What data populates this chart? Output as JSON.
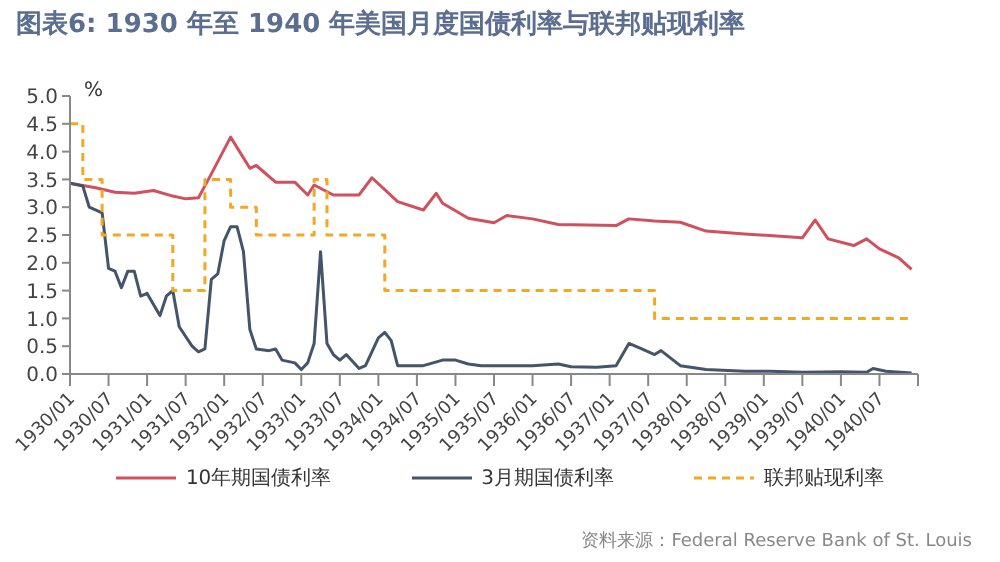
{
  "chart_data": {
    "type": "line",
    "title": "图表6:  1930 年至 1940 年美国月度国债利率与联邦贴现利率",
    "ylabel": "%",
    "annotations": [
      "资料来源：Federal Reserve Bank of St. Louis"
    ],
    "xlim": [
      "1930-01",
      "1941-01"
    ],
    "xticks": [
      {
        "value": "1930-01",
        "label": "1930/01"
      },
      {
        "value": "1930-07",
        "label": "1930/07"
      },
      {
        "value": "1931-01",
        "label": "1931/01"
      },
      {
        "value": "1931-07",
        "label": "1931/07"
      },
      {
        "value": "1932-01",
        "label": "1932/01"
      },
      {
        "value": "1932-07",
        "label": "1932/07"
      },
      {
        "value": "1933-01",
        "label": "1933/01"
      },
      {
        "value": "1933-07",
        "label": "1933/07"
      },
      {
        "value": "1934-01",
        "label": "1934/01"
      },
      {
        "value": "1934-07",
        "label": "1934/07"
      },
      {
        "value": "1935-01",
        "label": "1935/01"
      },
      {
        "value": "1935-07",
        "label": "1935/07"
      },
      {
        "value": "1936-01",
        "label": "1936/01"
      },
      {
        "value": "1936-07",
        "label": "1936/07"
      },
      {
        "value": "1937-01",
        "label": "1937/01"
      },
      {
        "value": "1937-07",
        "label": "1937/07"
      },
      {
        "value": "1938-01",
        "label": "1938/01"
      },
      {
        "value": "1938-07",
        "label": "1938/07"
      },
      {
        "value": "1939-01",
        "label": "1939/01"
      },
      {
        "value": "1939-07",
        "label": "1939/07"
      },
      {
        "value": "1940-01",
        "label": "1940/01"
      },
      {
        "value": "1940-07",
        "label": "1940/07"
      },
      {
        "value": "1941-01",
        "label": null
      }
    ],
    "ylim": [
      0,
      5
    ],
    "yticks": [
      {
        "value": 0,
        "label": "0.0"
      },
      {
        "value": 0.5,
        "label": "0.5"
      },
      {
        "value": 1,
        "label": "1.0"
      },
      {
        "value": 1.5,
        "label": "1.5"
      },
      {
        "value": 2,
        "label": "2.0"
      },
      {
        "value": 2.5,
        "label": "2.5"
      },
      {
        "value": 3,
        "label": "3.0"
      },
      {
        "value": 3.5,
        "label": "3.5"
      },
      {
        "value": 4,
        "label": "4.0"
      },
      {
        "value": 4.5,
        "label": "4.5"
      },
      {
        "value": 5,
        "label": "5.0"
      }
    ],
    "grid": false,
    "legend": "bottom",
    "marker": "none",
    "series": [
      {
        "name": "10年期国债利率",
        "color": "#d0505e",
        "type": "line",
        "line_style": "solid",
        "x": [
          "1930-01",
          "1930-05",
          "1930-08",
          "1930-11",
          "1931-02",
          "1931-05",
          "1931-07",
          "1931-09",
          "1931-11",
          "1932-02",
          "1932-05",
          "1932-06",
          "1932-09",
          "1932-12",
          "1933-02",
          "1933-03",
          "1933-06",
          "1933-10",
          "1933-12",
          "1934-04",
          "1934-08",
          "1934-10",
          "1934-11",
          "1935-03",
          "1935-07",
          "1935-09",
          "1936-01",
          "1936-05",
          "1937-02",
          "1937-04",
          "1937-08",
          "1937-12",
          "1938-04",
          "1938-10",
          "1939-07",
          "1939-09",
          "1939-11",
          "1940-03",
          "1940-05",
          "1940-07",
          "1940-10",
          "1940-12"
        ],
        "values": [
          3.43,
          3.35,
          3.27,
          3.25,
          3.3,
          3.2,
          3.15,
          3.17,
          3.6,
          4.26,
          3.7,
          3.75,
          3.45,
          3.45,
          3.22,
          3.4,
          3.22,
          3.22,
          3.53,
          3.1,
          2.95,
          3.25,
          3.07,
          2.8,
          2.72,
          2.85,
          2.79,
          2.69,
          2.67,
          2.79,
          2.75,
          2.73,
          2.57,
          2.52,
          2.45,
          2.77,
          2.43,
          2.31,
          2.43,
          2.25,
          2.09,
          1.88
        ]
      },
      {
        "name": "3月期国债利率",
        "color": "#44546a",
        "type": "line",
        "line_style": "solid",
        "x": [
          "1930-01",
          "1930-03",
          "1930-04",
          "1930-06",
          "1930-07",
          "1930-08",
          "1930-09",
          "1930-10",
          "1930-11",
          "1930-12",
          "1931-01",
          "1931-03",
          "1931-04",
          "1931-05",
          "1931-06",
          "1931-08",
          "1931-09",
          "1931-10",
          "1931-11",
          "1931-12",
          "1932-01",
          "1932-02",
          "1932-03",
          "1932-04",
          "1932-05",
          "1932-06",
          "1932-08",
          "1932-09",
          "1932-10",
          "1932-12",
          "1933-01",
          "1933-02",
          "1933-03",
          "1933-04",
          "1933-05",
          "1933-06",
          "1933-07",
          "1933-08",
          "1933-10",
          "1933-11",
          "1934-01",
          "1934-02",
          "1934-03",
          "1934-04",
          "1934-08",
          "1934-11",
          "1935-01",
          "1935-03",
          "1935-05",
          "1935-09",
          "1936-01",
          "1936-05",
          "1936-07",
          "1936-11",
          "1937-02",
          "1937-04",
          "1937-06",
          "1937-08",
          "1937-09",
          "1937-12",
          "1938-04",
          "1938-10",
          "1939-02",
          "1939-07",
          "1940-01",
          "1940-05",
          "1940-06",
          "1940-08",
          "1940-12"
        ],
        "values": [
          3.43,
          3.38,
          3.0,
          2.9,
          1.9,
          1.85,
          1.55,
          1.85,
          1.85,
          1.4,
          1.45,
          1.05,
          1.4,
          1.5,
          0.85,
          0.5,
          0.4,
          0.45,
          1.7,
          1.8,
          2.4,
          2.65,
          2.65,
          2.2,
          0.8,
          0.45,
          0.42,
          0.45,
          0.25,
          0.2,
          0.08,
          0.2,
          0.55,
          2.2,
          0.55,
          0.35,
          0.25,
          0.35,
          0.1,
          0.15,
          0.65,
          0.75,
          0.6,
          0.15,
          0.15,
          0.25,
          0.25,
          0.18,
          0.15,
          0.15,
          0.15,
          0.18,
          0.13,
          0.12,
          0.15,
          0.55,
          0.45,
          0.35,
          0.42,
          0.15,
          0.08,
          0.05,
          0.05,
          0.03,
          0.04,
          0.03,
          0.1,
          0.05,
          0.02
        ]
      },
      {
        "name": "联邦贴现利率",
        "color": "#f5a623",
        "type": "step",
        "line_style": "dashed",
        "x": [
          "1930-01",
          "1930-03",
          "1930-06",
          "1931-05",
          "1931-10",
          "1932-02",
          "1932-06",
          "1933-03",
          "1933-05",
          "1934-02",
          "1937-08",
          "1940-12"
        ],
        "values": [
          4.5,
          3.5,
          2.5,
          1.5,
          3.5,
          3.0,
          2.5,
          3.5,
          2.5,
          1.5,
          1.0,
          1.0
        ]
      }
    ]
  }
}
